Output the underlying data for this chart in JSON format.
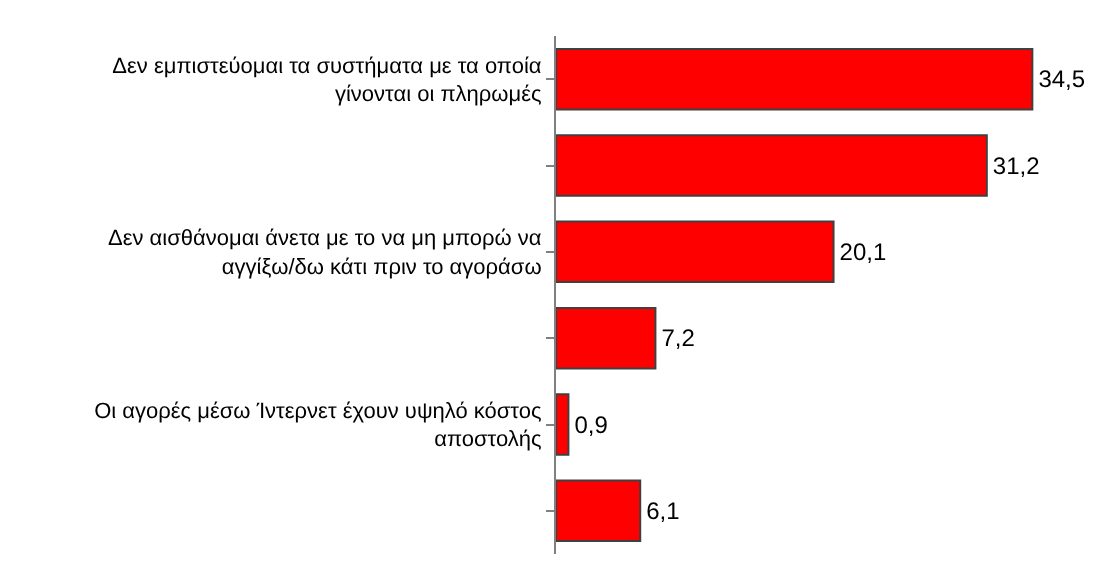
{
  "chart_data": {
    "type": "bar",
    "orientation": "horizontal",
    "categories": [
      "Δεν εμπιστεύομαι τα συστήματα με τα οποία γίνονται οι πληρωμές",
      null,
      "Δεν αισθάνομαι άνετα με το να μη μπορώ να αγγίξω/δω κάτι πριν το αγοράσω",
      null,
      "Οι αγορές μέσω Ίντερνετ έχουν υψηλό κόστος αποστολής",
      null
    ],
    "values": [
      34.5,
      31.2,
      20.1,
      7.2,
      0.9,
      6.1
    ],
    "value_labels": [
      "34,5",
      "31,2",
      "20,1",
      "7,2",
      "0,9",
      "6,1"
    ],
    "color": "#ff0000"
  }
}
